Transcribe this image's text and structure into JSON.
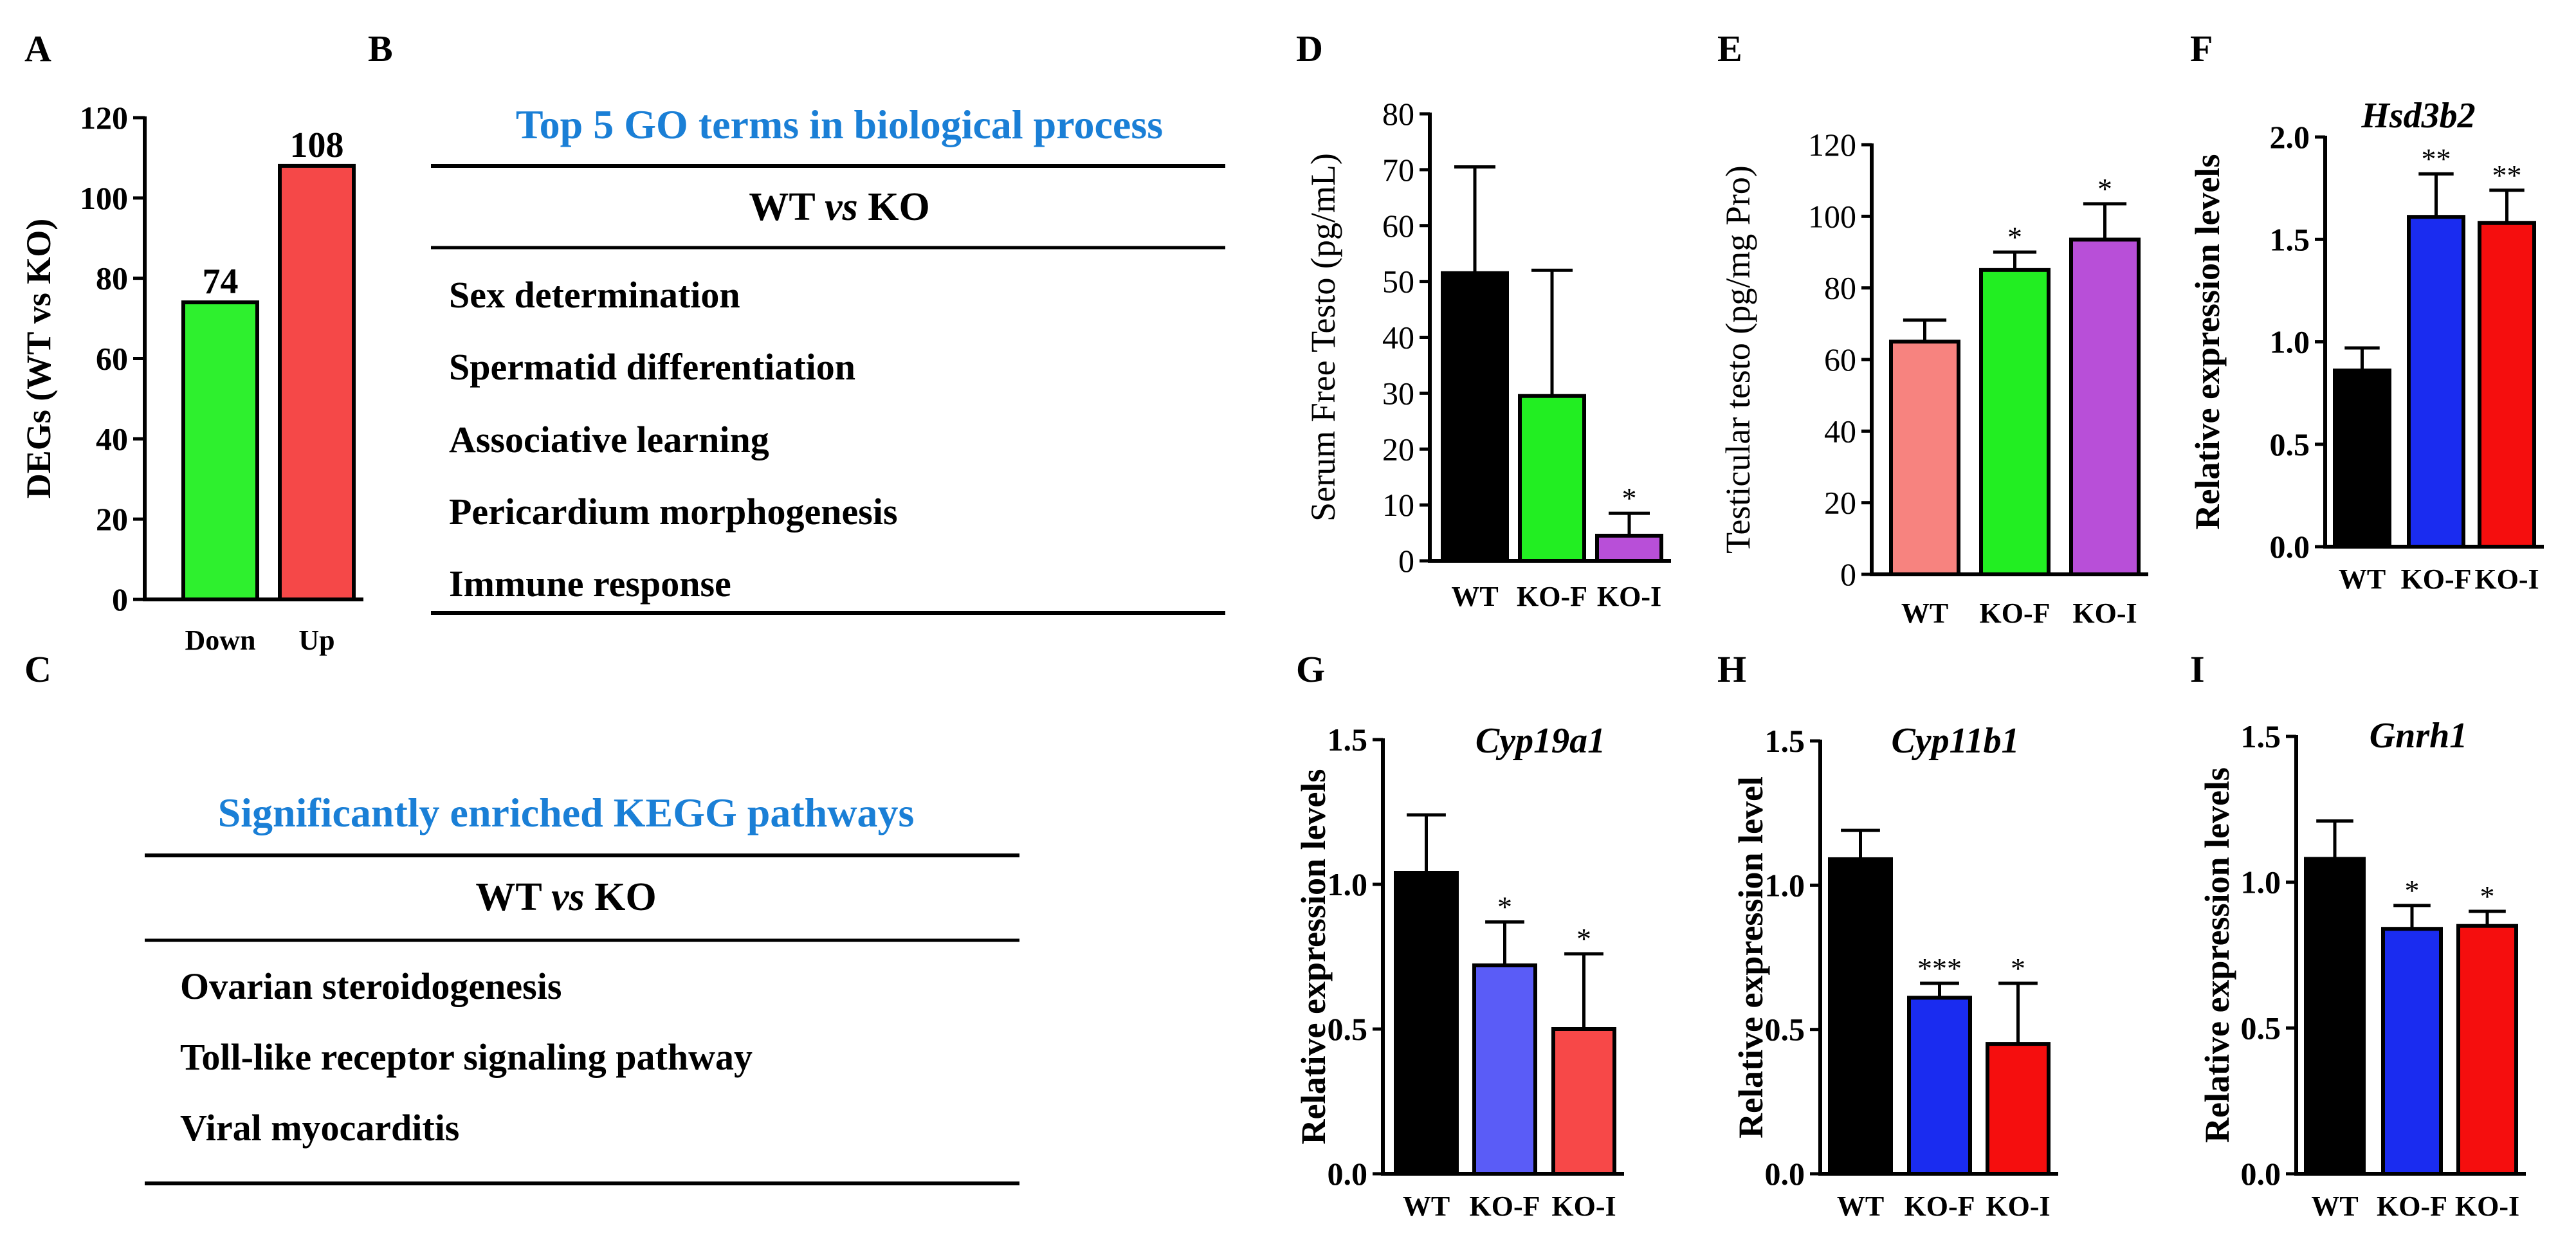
{
  "panel_letters": {
    "A": "A",
    "B": "B",
    "C": "C",
    "D": "D",
    "E": "E",
    "F": "F",
    "G": "G",
    "H": "H",
    "I": "I"
  },
  "tables": {
    "go": {
      "title": "Top 5 GO terms in biological process",
      "header_left": "WT ",
      "header_vs": "vs",
      "header_right": " KO",
      "rows": [
        "Sex determination",
        "Spermatid differentiation",
        "Associative learning",
        "Pericardium morphogenesis",
        "Immune response"
      ]
    },
    "kegg": {
      "title": "Significantly enriched KEGG pathways",
      "header_left": "WT ",
      "header_vs": "vs",
      "header_right": " KO",
      "rows": [
        "Ovarian steroidogenesis",
        "Toll-like receptor signaling pathway",
        "Viral myocarditis"
      ]
    }
  },
  "chart_data": [
    {
      "id": "A",
      "type": "bar",
      "title": "",
      "ylabel": "DEGs (WT vs KO)",
      "xlabel": "",
      "ylim": [
        0,
        120
      ],
      "yticks": [
        0,
        20,
        40,
        60,
        80,
        100,
        120
      ],
      "categories": [
        "Down",
        "Up"
      ],
      "values": [
        74,
        108
      ],
      "errors": [
        0,
        0
      ],
      "colors": [
        "#2ef02e",
        "#f54848"
      ],
      "data_labels": [
        "74",
        "108"
      ],
      "stars": [
        "",
        ""
      ]
    },
    {
      "id": "D",
      "type": "bar",
      "title": "",
      "ylabel": "Serum Free Testo (pg/mL)",
      "xlabel": "",
      "ylim": [
        0,
        80
      ],
      "yticks": [
        0,
        10,
        20,
        30,
        40,
        50,
        60,
        70,
        80
      ],
      "categories": [
        "WT",
        "KO-F",
        "KO-I"
      ],
      "values": [
        51.5,
        29.5,
        4.5
      ],
      "errors": [
        19,
        22.5,
        4
      ],
      "colors": [
        "#000000",
        "#22ee22",
        "#b84fd8"
      ],
      "data_labels": [
        "",
        "",
        ""
      ],
      "stars": [
        "",
        "",
        "*"
      ]
    },
    {
      "id": "E",
      "type": "bar",
      "title": "",
      "ylabel": "Testicular testo (pg/mg Pro)",
      "xlabel": "",
      "ylim": [
        0,
        120
      ],
      "yticks": [
        0,
        20,
        40,
        60,
        80,
        100,
        120
      ],
      "categories": [
        "WT",
        "KO-F",
        "KO-I"
      ],
      "values": [
        65,
        85,
        93.5
      ],
      "errors": [
        6,
        5,
        10
      ],
      "colors": [
        "#f7837f",
        "#22ee22",
        "#b84fd8"
      ],
      "data_labels": [
        "",
        "",
        ""
      ],
      "stars": [
        "",
        "*",
        "*"
      ]
    },
    {
      "id": "F",
      "type": "bar",
      "title": "Hsd3b2",
      "ylabel": "Relative expression levels",
      "xlabel": "",
      "ylim": [
        0,
        2.0
      ],
      "yticks": [
        "0.0",
        "0.5",
        "1.0",
        "1.5",
        "2.0"
      ],
      "categories": [
        "WT",
        "KO-F",
        "KO-I"
      ],
      "values": [
        0.86,
        1.61,
        1.58
      ],
      "errors": [
        0.11,
        0.21,
        0.16
      ],
      "colors": [
        "#000000",
        "#1a2cf0",
        "#f50e0e"
      ],
      "data_labels": [
        "",
        "",
        ""
      ],
      "stars": [
        "",
        "**",
        "**"
      ]
    },
    {
      "id": "G",
      "type": "bar",
      "title": "Cyp19a1",
      "ylabel": "Relative expression levels",
      "xlabel": "",
      "ylim": [
        0,
        1.5
      ],
      "yticks": [
        "0.0",
        "0.5",
        "1.0",
        "1.5"
      ],
      "categories": [
        "WT",
        "KO-F",
        "KO-I"
      ],
      "values": [
        1.04,
        0.72,
        0.5
      ],
      "errors": [
        0.2,
        0.15,
        0.26
      ],
      "colors": [
        "#000000",
        "#5a5cf7",
        "#f74848"
      ],
      "data_labels": [
        "",
        "",
        ""
      ],
      "stars": [
        "",
        "*",
        "*"
      ]
    },
    {
      "id": "H",
      "type": "bar",
      "title": "Cyp11b1",
      "ylabel": "Relative expression level",
      "xlabel": "",
      "ylim": [
        0,
        1.5
      ],
      "yticks": [
        "0.0",
        "0.5",
        "1.0",
        "1.5"
      ],
      "categories": [
        "WT",
        "KO-F",
        "KO-I"
      ],
      "values": [
        1.09,
        0.61,
        0.45
      ],
      "errors": [
        0.1,
        0.05,
        0.21
      ],
      "colors": [
        "#000000",
        "#1a2cf0",
        "#f50e0e"
      ],
      "data_labels": [
        "",
        "",
        ""
      ],
      "stars": [
        "",
        "***",
        "*"
      ]
    },
    {
      "id": "I",
      "type": "bar",
      "title": "Gnrh1",
      "ylabel": "Relative expression levels",
      "xlabel": "",
      "ylim": [
        0,
        1.5
      ],
      "yticks": [
        "0.0",
        "0.5",
        "1.0",
        "1.5"
      ],
      "categories": [
        "WT",
        "KO-F",
        "KO-I"
      ],
      "values": [
        1.08,
        0.84,
        0.85
      ],
      "errors": [
        0.13,
        0.08,
        0.05
      ],
      "colors": [
        "#000000",
        "#1a2cf0",
        "#f50e0e"
      ],
      "data_labels": [
        "",
        "",
        ""
      ],
      "stars": [
        "",
        "*",
        "*"
      ]
    }
  ]
}
